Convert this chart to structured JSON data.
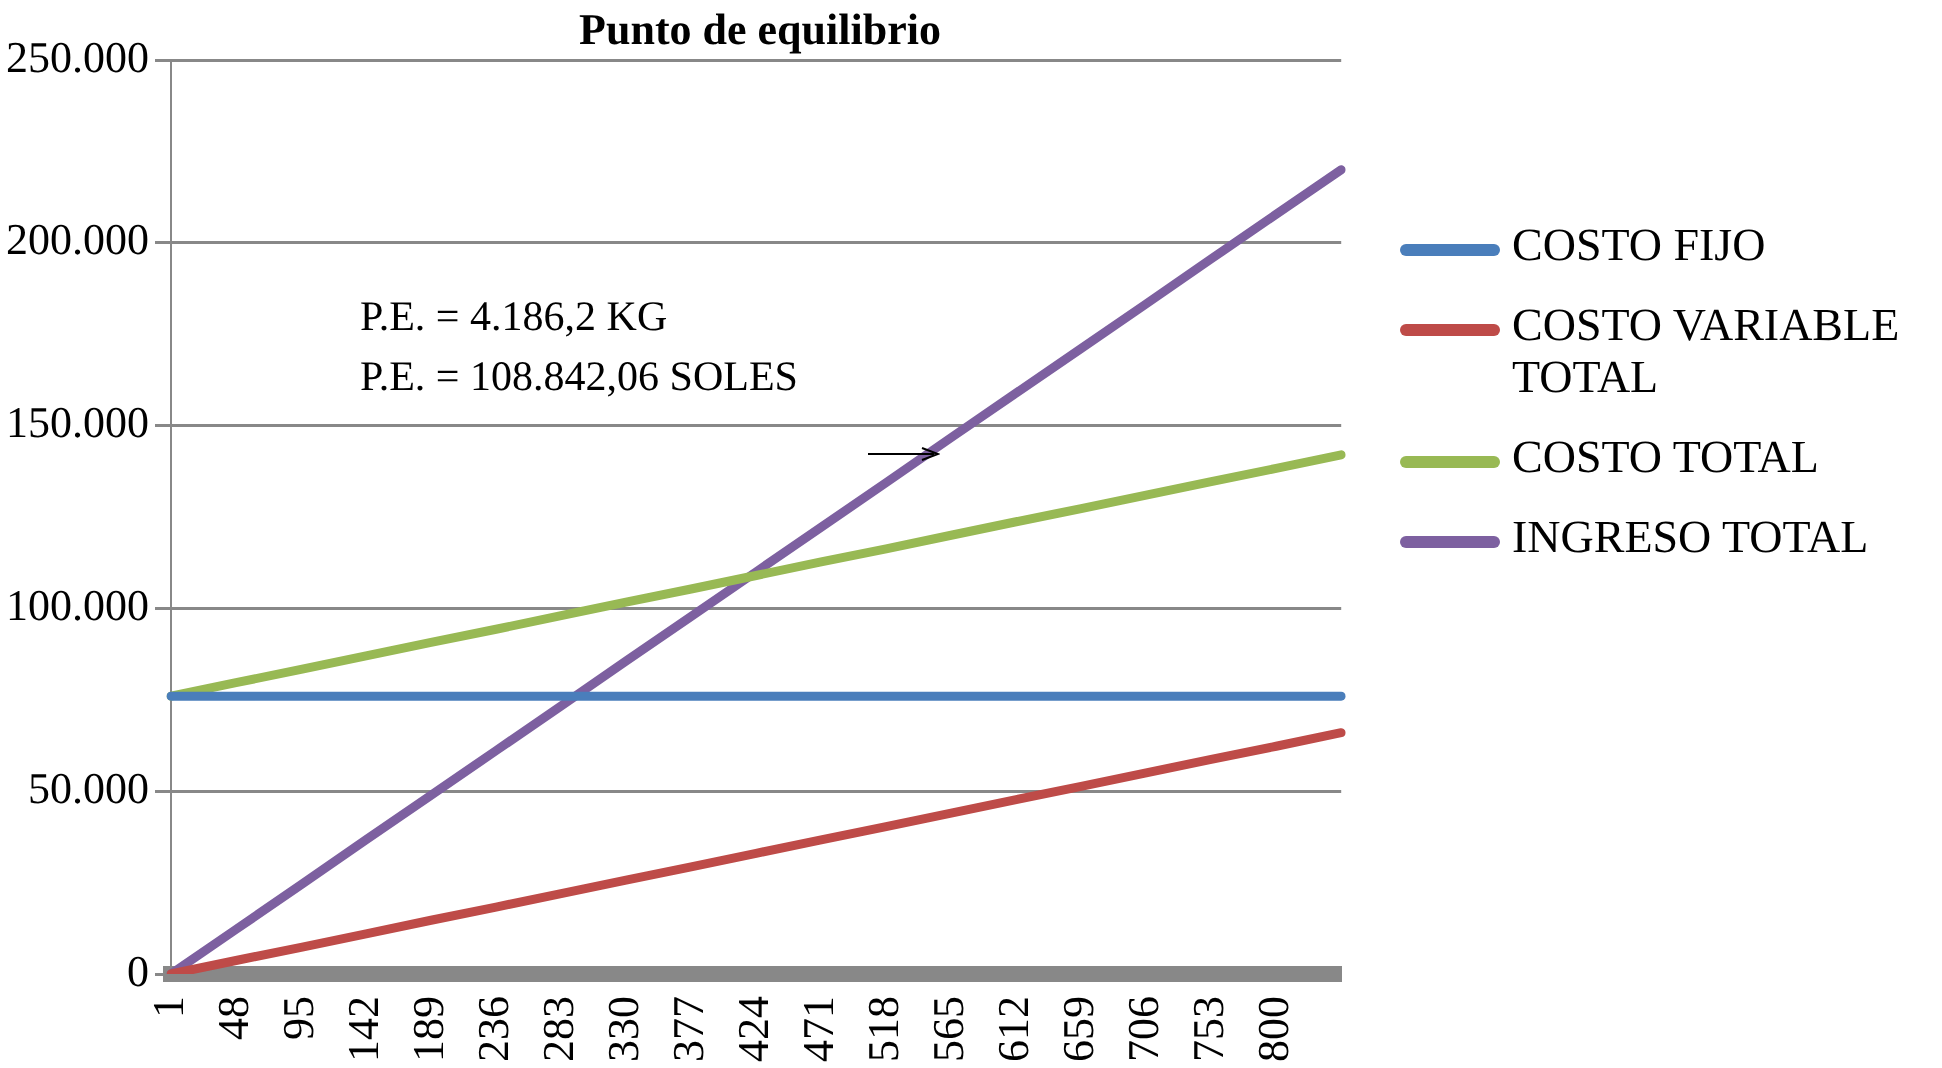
{
  "chart_data": {
    "type": "line",
    "title": "Punto de equilibrio",
    "categories": [
      "1",
      "48",
      "95",
      "142",
      "189",
      "236",
      "283",
      "330",
      "377",
      "424",
      "471",
      "518",
      "565",
      "612",
      "659",
      "706",
      "753",
      "800",
      null
    ],
    "series": [
      {
        "name": "COSTO FIJO",
        "color": "#4a7ebb",
        "values": [
          76000,
          76000,
          76000,
          76000,
          76000,
          76000,
          76000,
          76000,
          76000,
          76000,
          76000,
          76000,
          76000,
          76000,
          76000,
          76000,
          76000,
          76000,
          76000
        ]
      },
      {
        "name": "COSTO VARIABLE TOTAL",
        "color": "#be4b48",
        "values": [
          0,
          3700,
          7300,
          11000,
          14700,
          18300,
          22000,
          25700,
          29300,
          33000,
          36700,
          40300,
          44000,
          47700,
          51300,
          55000,
          58700,
          62300,
          66000
        ]
      },
      {
        "name": "COSTO TOTAL",
        "color": "#98b954",
        "values": [
          76000,
          79700,
          83300,
          87000,
          90700,
          94300,
          98000,
          101700,
          105300,
          109000,
          112700,
          116300,
          120000,
          123700,
          127300,
          131000,
          134700,
          138300,
          142000
        ]
      },
      {
        "name": "INGRESO TOTAL",
        "color": "#7d60a0",
        "values": [
          0,
          12200,
          24400,
          36700,
          48900,
          61100,
          73300,
          85600,
          97800,
          110000,
          122200,
          134400,
          146700,
          158900,
          171100,
          183300,
          195600,
          207800,
          220000
        ]
      }
    ],
    "ylim": [
      0,
      250000
    ],
    "yticks": [
      0,
      {
        "value": 50000,
        "label": "50.000"
      },
      {
        "value": 100000,
        "label": "100.000"
      },
      {
        "value": 150000,
        "label": "150.000"
      },
      {
        "value": 200000,
        "label": "200.000"
      },
      {
        "value": 250000,
        "label": "250.000"
      }
    ],
    "grid": "y",
    "legend": "right",
    "marker": "none",
    "line_style": "solid",
    "annotations": [
      "P.E. = 4.186,2 KG",
      "P.E. = 108.842,06 SOLES"
    ]
  }
}
